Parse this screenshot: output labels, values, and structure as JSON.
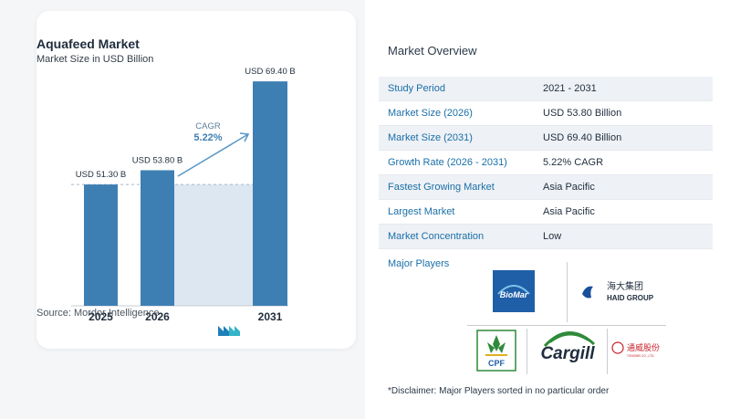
{
  "card": {
    "title": "Aquafeed Market",
    "subtitle": "Market Size in USD Billion",
    "source": "Source:  Mordor Intelligence"
  },
  "chart_data": {
    "type": "bar",
    "categories": [
      "2025",
      "2026",
      "2031"
    ],
    "values": [
      51.3,
      53.8,
      69.4
    ],
    "value_labels": [
      "USD 51.30 B",
      "USD 53.80 B",
      "USD 69.40 B"
    ],
    "cagr_label": "CAGR",
    "cagr_value": "5.22%",
    "title": "Aquafeed Market",
    "subtitle": "Market Size in USD Billion",
    "bar_color": "#3e7fb3",
    "grid": false
  },
  "overview": {
    "title": "Market Overview",
    "rows": [
      {
        "label": "Study Period",
        "value": "2021 - 2031"
      },
      {
        "label": "Market Size (2026)",
        "value": "USD 53.80 Billion"
      },
      {
        "label": "Market Size (2031)",
        "value": "USD 69.40 Billion"
      },
      {
        "label": "Growth Rate (2026 - 2031)",
        "value": "5.22% CAGR"
      },
      {
        "label": "Fastest Growing Market",
        "value": "Asia Pacific"
      },
      {
        "label": "Largest Market",
        "value": "Asia Pacific"
      },
      {
        "label": "Market Concentration",
        "value": "Low"
      }
    ],
    "players_label": "Major Players",
    "players": {
      "biomar": "BioMar",
      "haid_cn": "海大集团",
      "haid_en": "HAID GROUP",
      "cpf": "CPF",
      "cargill": "Cargill",
      "tongwei_cn": "通威股份",
      "tongwei_en": "TONGWEI CO., LTD."
    },
    "disclaimer": "*Disclaimer: Major Players sorted in no particular order"
  },
  "colors": {
    "accent": "#1a6fa8",
    "bar": "#3e7fb3",
    "band": "#dce7f1"
  }
}
